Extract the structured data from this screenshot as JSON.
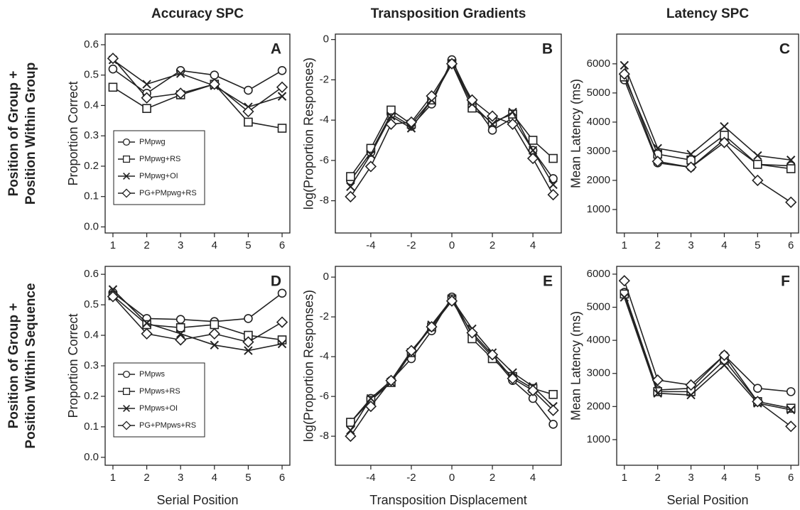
{
  "row_labels": [
    [
      "Position of Group +",
      "Position Within Group"
    ],
    [
      "Position of Group +",
      "Position Within Sequence"
    ]
  ],
  "chart_data": [
    {
      "type": "line",
      "title": "Accuracy SPC",
      "label": "A",
      "ylabel": "Proportion Correct",
      "x": [
        1,
        2,
        3,
        4,
        5,
        6
      ],
      "xlim": [
        0.77,
        6.23
      ],
      "xticks": [
        1,
        2,
        3,
        4,
        5,
        6
      ],
      "ylim": [
        -0.02,
        0.635
      ],
      "yticks": [
        {
          "value": 0,
          "label": "0.0"
        },
        0.1,
        0.2,
        0.3,
        0.4,
        0.5,
        0.6
      ],
      "legend": "lower left",
      "series": [
        {
          "name": "PMpwg",
          "marker": "circle",
          "color": "#222",
          "values": [
            0.52,
            0.44,
            0.515,
            0.5,
            0.45,
            0.515
          ]
        },
        {
          "name": "PMpwg+RS",
          "marker": "square",
          "color": "#222",
          "values": [
            0.46,
            0.39,
            0.435,
            0.47,
            0.345,
            0.325
          ]
        },
        {
          "name": "PMpwg+OI",
          "marker": "x",
          "color": "#222",
          "values": [
            0.55,
            0.47,
            0.505,
            0.465,
            0.395,
            0.43
          ]
        },
        {
          "name": "PG+PMpwg+RS",
          "marker": "diamond",
          "color": "#222",
          "values": [
            0.555,
            0.425,
            0.44,
            0.47,
            0.38,
            0.46
          ]
        }
      ]
    },
    {
      "type": "line",
      "title": "Transposition Gradients",
      "label": "B",
      "ylabel": "log(Proportion Responses)",
      "x": [
        -5,
        -4,
        -3,
        -2,
        -1,
        0,
        1,
        2,
        3,
        4,
        5
      ],
      "xlim": [
        -5.75,
        5.4
      ],
      "xticks": [
        -4,
        -2,
        0,
        2,
        4
      ],
      "ylim": [
        -9.6,
        0.27
      ],
      "yticks": [
        -8,
        -6,
        -4,
        -2,
        0
      ],
      "series": [
        {
          "marker": "circle",
          "color": "#222",
          "values": [
            -7.0,
            -5.6,
            -3.7,
            -4.3,
            -3.2,
            -1.0,
            -3.1,
            -4.5,
            -3.9,
            -5.5,
            -6.9
          ]
        },
        {
          "marker": "square",
          "color": "#222",
          "values": [
            -6.8,
            -5.4,
            -3.5,
            -4.2,
            -3.0,
            -1.2,
            -3.4,
            -4.1,
            -3.7,
            -5.0,
            -5.9
          ]
        },
        {
          "marker": "x",
          "color": "#222",
          "values": [
            -7.3,
            -5.7,
            -3.8,
            -4.4,
            -3.0,
            -1.2,
            -3.2,
            -4.2,
            -3.6,
            -5.5,
            -7.2
          ]
        },
        {
          "marker": "diamond",
          "color": "#222",
          "values": [
            -7.8,
            -6.3,
            -4.2,
            -4.1,
            -2.8,
            -1.2,
            -3.0,
            -3.8,
            -4.2,
            -5.9,
            -7.7
          ]
        }
      ]
    },
    {
      "type": "line",
      "title": "Latency SPC",
      "label": "C",
      "ylabel": "Mean Latency (ms)",
      "x": [
        1,
        2,
        3,
        4,
        5,
        6
      ],
      "xlim": [
        0.77,
        6.23
      ],
      "xticks": [
        1,
        2,
        3,
        4,
        5,
        6
      ],
      "ylim": [
        195,
        7020
      ],
      "yticks": [
        1000,
        2000,
        3000,
        4000,
        5000,
        6000
      ],
      "series": [
        {
          "marker": "circle",
          "color": "#222",
          "values": [
            5450,
            2600,
            2450,
            3400,
            2550,
            2500
          ]
        },
        {
          "marker": "square",
          "color": "#222",
          "values": [
            5550,
            2900,
            2700,
            3550,
            2550,
            2400
          ]
        },
        {
          "marker": "x",
          "color": "#222",
          "values": [
            5950,
            3100,
            2900,
            3850,
            2850,
            2700
          ]
        },
        {
          "marker": "diamond",
          "color": "#222",
          "values": [
            5650,
            2650,
            2450,
            3300,
            2000,
            1250
          ]
        }
      ]
    },
    {
      "type": "line",
      "label": "D",
      "ylabel": "Proportion Correct",
      "xlabel": "Serial Position",
      "x": [
        1,
        2,
        3,
        4,
        5,
        6
      ],
      "xlim": [
        0.77,
        6.23
      ],
      "xticks": [
        1,
        2,
        3,
        4,
        5,
        6
      ],
      "ylim": [
        -0.026,
        0.626
      ],
      "yticks": [
        {
          "value": 0,
          "label": "0.0"
        },
        0.1,
        0.2,
        0.3,
        0.4,
        0.5,
        0.6
      ],
      "legend": "lower left",
      "series": [
        {
          "name": "PMpws",
          "marker": "circle",
          "color": "#222",
          "values": [
            0.54,
            0.455,
            0.452,
            0.445,
            0.455,
            0.538
          ]
        },
        {
          "name": "PMpws+RS",
          "marker": "square",
          "color": "#222",
          "values": [
            0.53,
            0.435,
            0.425,
            0.435,
            0.4,
            0.385
          ]
        },
        {
          "name": "PMpws+OI",
          "marker": "x",
          "color": "#222",
          "values": [
            0.55,
            0.44,
            0.405,
            0.368,
            0.35,
            0.372
          ]
        },
        {
          "name": "PG+PMpws+RS",
          "marker": "diamond",
          "color": "#222",
          "values": [
            0.527,
            0.405,
            0.385,
            0.405,
            0.378,
            0.443
          ]
        }
      ]
    },
    {
      "type": "line",
      "label": "E",
      "ylabel": "log(Proportion Responses)",
      "xlabel": "Transposition Displacement",
      "x": [
        -5,
        -4,
        -3,
        -2,
        -1,
        0,
        1,
        2,
        3,
        4,
        5
      ],
      "xlim": [
        -5.75,
        5.4
      ],
      "xticks": [
        -4,
        -2,
        0,
        2,
        4
      ],
      "ylim": [
        -9.46,
        0.54
      ],
      "yticks": [
        -8,
        -6,
        -4,
        -2,
        0
      ],
      "series": [
        {
          "marker": "circle",
          "color": "#222",
          "values": [
            -7.3,
            -6.1,
            -5.2,
            -4.1,
            -2.7,
            -1.0,
            -2.9,
            -4.0,
            -5.2,
            -6.1,
            -7.4
          ]
        },
        {
          "marker": "square",
          "color": "#222",
          "values": [
            -7.3,
            -6.2,
            -5.3,
            -3.8,
            -2.5,
            -1.1,
            -3.1,
            -4.1,
            -5.0,
            -5.6,
            -5.9
          ]
        },
        {
          "marker": "x",
          "color": "#222",
          "values": [
            -7.7,
            -6.1,
            -5.3,
            -3.8,
            -2.4,
            -1.1,
            -2.6,
            -3.8,
            -4.8,
            -5.5,
            -6.5
          ]
        },
        {
          "marker": "diamond",
          "color": "#222",
          "values": [
            -8.0,
            -6.5,
            -5.2,
            -3.7,
            -2.5,
            -1.2,
            -2.8,
            -3.9,
            -5.1,
            -5.7,
            -6.7
          ]
        }
      ]
    },
    {
      "type": "line",
      "label": "F",
      "ylabel": "Mean Latency (ms)",
      "xlabel": "Serial Position",
      "x": [
        1,
        2,
        3,
        4,
        5,
        6
      ],
      "xlim": [
        0.77,
        6.23
      ],
      "xticks": [
        1,
        2,
        3,
        4,
        5,
        6
      ],
      "ylim": [
        226,
        6235
      ],
      "yticks": [
        1000,
        2000,
        3000,
        4000,
        5000,
        6000
      ],
      "series": [
        {
          "marker": "circle",
          "color": "#222",
          "values": [
            5450,
            2500,
            2550,
            3550,
            2550,
            2450
          ]
        },
        {
          "marker": "square",
          "color": "#222",
          "values": [
            5400,
            2450,
            2450,
            3400,
            2150,
            1950
          ]
        },
        {
          "marker": "x",
          "color": "#222",
          "values": [
            5300,
            2400,
            2350,
            3250,
            2100,
            1900
          ]
        },
        {
          "marker": "diamond",
          "color": "#222",
          "values": [
            5800,
            2800,
            2650,
            3550,
            2150,
            1400
          ]
        }
      ]
    }
  ]
}
